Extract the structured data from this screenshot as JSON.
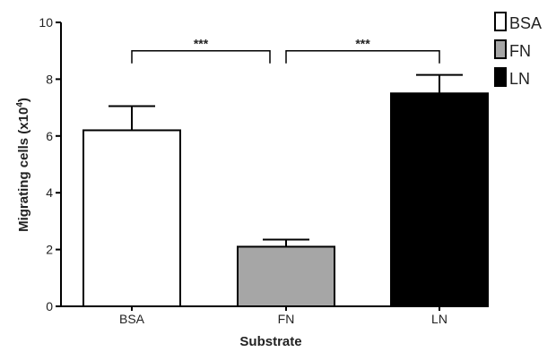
{
  "chart_data": {
    "type": "bar",
    "title": "",
    "xlabel": "Substrate",
    "ylabel": "Migrating cells (x10",
    "ylabel_superscript": "4",
    "ylabel_close": ")",
    "ylim": [
      0,
      10
    ],
    "yticks": [
      "0",
      "2",
      "4",
      "6",
      "8",
      "10"
    ],
    "categories": [
      "BSA",
      "FN",
      "LN"
    ],
    "values": [
      6.2,
      2.1,
      7.5
    ],
    "errors": [
      0.85,
      0.25,
      0.65
    ],
    "colors": [
      "#ffffff",
      "#a6a6a6",
      "#000000"
    ],
    "legend": {
      "placement": "top-right",
      "entries": [
        "BSA",
        "FN",
        "LN"
      ]
    },
    "annotations": [
      {
        "from": "BSA",
        "to": "FN",
        "label": "***",
        "y": 9.0
      },
      {
        "from": "FN",
        "to": "LN",
        "label": "***",
        "y": 9.0
      }
    ]
  }
}
